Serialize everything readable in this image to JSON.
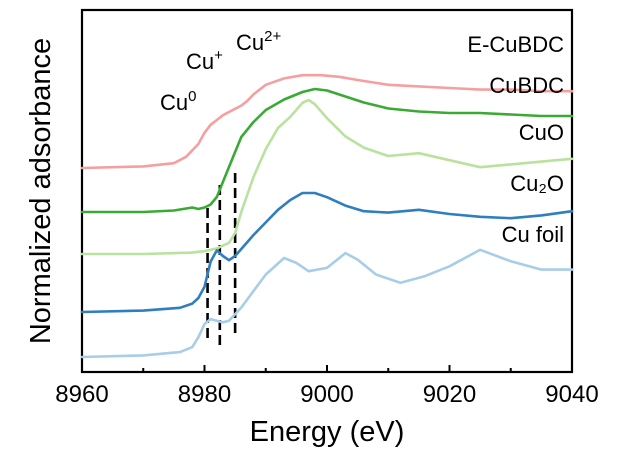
{
  "chart_data": {
    "type": "line",
    "title": "",
    "xlabel": "Energy (eV)",
    "ylabel": "Normalized adsorbance",
    "xlim": [
      8960,
      9040
    ],
    "x_ticks": [
      8960,
      8980,
      9000,
      9020,
      9040
    ],
    "y_ticks_shown": false,
    "grid": false,
    "legend": "labels placed at the right end of each trace",
    "series": [
      {
        "name": "E-CuBDC",
        "color": "#f4a0a0",
        "x": [
          8960,
          8970,
          8975,
          8977,
          8979,
          8980,
          8981,
          8982,
          8983,
          8984,
          8985,
          8986,
          8987,
          8988,
          8990,
          8993,
          8996,
          8999,
          9002,
          9005,
          9010,
          9015,
          9020,
          9025,
          9030,
          9035,
          9040
        ],
        "y": [
          0.0,
          0.01,
          0.03,
          0.07,
          0.15,
          0.22,
          0.27,
          0.3,
          0.33,
          0.35,
          0.37,
          0.39,
          0.42,
          0.46,
          0.52,
          0.56,
          0.58,
          0.58,
          0.57,
          0.55,
          0.52,
          0.51,
          0.5,
          0.49,
          0.49,
          0.48,
          0.48
        ]
      },
      {
        "name": "CuBDC",
        "color": "#3aaa35",
        "x": [
          8960,
          8970,
          8975,
          8978,
          8979,
          8980,
          8981,
          8982,
          8983,
          8984,
          8985,
          8986,
          8988,
          8990,
          8993,
          8996,
          8998,
          9000,
          9003,
          9006,
          9010,
          9015,
          9020,
          9025,
          9030,
          9035,
          9040
        ],
        "y": [
          0.0,
          0.0,
          0.01,
          0.03,
          0.02,
          0.03,
          0.05,
          0.1,
          0.2,
          0.3,
          0.4,
          0.5,
          0.6,
          0.68,
          0.75,
          0.8,
          0.82,
          0.81,
          0.77,
          0.73,
          0.69,
          0.67,
          0.66,
          0.66,
          0.65,
          0.64,
          0.64
        ]
      },
      {
        "name": "CuO",
        "color": "#b9e29e",
        "x": [
          8960,
          8970,
          8978,
          8980,
          8982,
          8984,
          8985,
          8986,
          8988,
          8990,
          8992,
          8994,
          8996,
          8997,
          8998,
          9000,
          9003,
          9006,
          9010,
          9015,
          9020,
          9025,
          9030,
          9035,
          9040
        ],
        "y": [
          0.0,
          0.0,
          0.01,
          0.02,
          0.04,
          0.08,
          0.15,
          0.3,
          0.55,
          0.75,
          0.9,
          0.98,
          1.08,
          1.1,
          1.07,
          0.97,
          0.84,
          0.76,
          0.7,
          0.72,
          0.67,
          0.62,
          0.64,
          0.66,
          0.68
        ]
      },
      {
        "name": "Cu₂O",
        "color": "#2f7fbf",
        "x": [
          8960,
          8970,
          8976,
          8978,
          8979,
          8980,
          8981,
          8982,
          8983,
          8984,
          8985,
          8986,
          8988,
          8990,
          8992,
          8994,
          8996,
          8998,
          9000,
          9003,
          9006,
          9010,
          9015,
          9020,
          9025,
          9030,
          9035,
          9040
        ],
        "y": [
          0.0,
          0.01,
          0.03,
          0.06,
          0.1,
          0.18,
          0.36,
          0.44,
          0.4,
          0.37,
          0.4,
          0.45,
          0.55,
          0.64,
          0.73,
          0.8,
          0.85,
          0.85,
          0.82,
          0.76,
          0.72,
          0.71,
          0.73,
          0.7,
          0.68,
          0.67,
          0.69,
          0.72
        ]
      },
      {
        "name": "Cu foil",
        "color": "#a8cde8",
        "x": [
          8960,
          8970,
          8976,
          8978,
          8979,
          8980,
          8981,
          8982,
          8983,
          8984,
          8986,
          8988,
          8990,
          8993,
          8995,
          8997,
          9000,
          9003,
          9005,
          9008,
          9012,
          9016,
          9020,
          9025,
          9030,
          9035,
          9040
        ],
        "y": [
          0.0,
          0.01,
          0.03,
          0.06,
          0.12,
          0.2,
          0.23,
          0.22,
          0.21,
          0.22,
          0.3,
          0.4,
          0.5,
          0.6,
          0.57,
          0.52,
          0.54,
          0.63,
          0.59,
          0.5,
          0.45,
          0.49,
          0.55,
          0.65,
          0.58,
          0.53,
          0.53
        ]
      }
    ],
    "annotations": [
      {
        "label": "Cu",
        "superscript": "0",
        "x": 8980.5
      },
      {
        "label": "Cu",
        "superscript": "+",
        "x": 8982.5
      },
      {
        "label": "Cu",
        "superscript": "2+",
        "x": 8985
      }
    ]
  }
}
